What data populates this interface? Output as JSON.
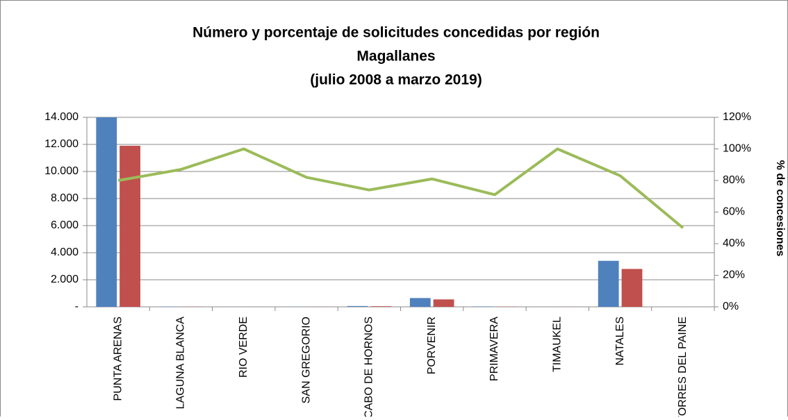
{
  "chart_data": {
    "type": "bar-line",
    "title": [
      "Número y porcentaje de solicitudes concedidas por región",
      "Magallanes",
      "(julio 2008 a marzo 2019)"
    ],
    "y2_label": "% de concesiones",
    "categories": [
      "PUNTA ARENAS",
      "LAGUNA BLANCA",
      "RIO VERDE",
      "SAN GREGORIO",
      "CABO DE HORNOS",
      "PORVENIR",
      "PRIMAVERA",
      "TIMAUKEL",
      "NATALES",
      "TORRES DEL PAINE"
    ],
    "series": [
      {
        "type": "bar",
        "color": "#4f81bd",
        "values": [
          14000,
          20,
          5,
          10,
          60,
          650,
          30,
          5,
          3400,
          4
        ]
      },
      {
        "type": "bar",
        "color": "#c0504d",
        "values": [
          11900,
          15,
          5,
          8,
          45,
          550,
          20,
          5,
          2800,
          2
        ]
      },
      {
        "type": "line",
        "axis": "y2",
        "color": "#9bbb59",
        "values": [
          80,
          87,
          100,
          82,
          74,
          81,
          71,
          100,
          83,
          50
        ]
      }
    ],
    "ylim": [
      0,
      14000
    ],
    "yticks": [
      {
        "value": 0,
        "label": "-"
      },
      {
        "value": 2000,
        "label": "2.000"
      },
      {
        "value": 4000,
        "label": "4.000"
      },
      {
        "value": 6000,
        "label": "6.000"
      },
      {
        "value": 8000,
        "label": "8.000"
      },
      {
        "value": 10000,
        "label": "10.000"
      },
      {
        "value": 12000,
        "label": "12.000"
      },
      {
        "value": 14000,
        "label": "14.000"
      }
    ],
    "y2lim": [
      0,
      120
    ],
    "y2ticks": [
      {
        "value": 0,
        "label": "0%"
      },
      {
        "value": 20,
        "label": "20%"
      },
      {
        "value": 40,
        "label": "40%"
      },
      {
        "value": 60,
        "label": "60%"
      },
      {
        "value": 80,
        "label": "80%"
      },
      {
        "value": 100,
        "label": "100%"
      },
      {
        "value": 120,
        "label": "120%"
      }
    ],
    "grid": true
  }
}
